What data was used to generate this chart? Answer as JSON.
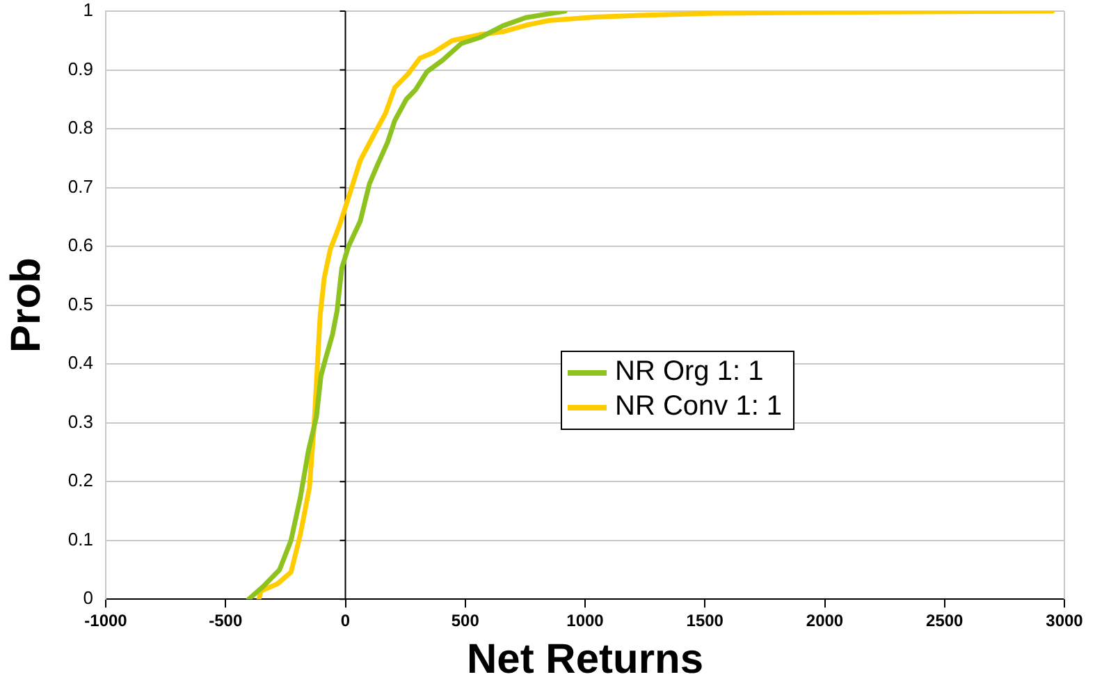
{
  "chart_data": {
    "type": "line",
    "xlabel": "Net Returns",
    "ylabel": "Prob",
    "xlim": [
      -1000,
      3000
    ],
    "xticks": [
      -1000,
      -500,
      0,
      500,
      1000,
      1500,
      2000,
      2500,
      3000
    ],
    "ylim": [
      0,
      1
    ],
    "yticks": [
      0,
      0.1,
      0.2,
      0.3,
      0.4,
      0.5,
      0.6,
      0.7,
      0.8,
      0.9,
      1
    ],
    "grid": "y",
    "legend": "right",
    "marker": "none",
    "line_style": "solid",
    "series": [
      {
        "name": "NR Org 1: 1",
        "color": "#8dc21f",
        "x": [
          -403,
          -342,
          -275,
          -227,
          -188,
          -154,
          -121,
          -102,
          -82,
          -54,
          -35,
          -15,
          13,
          62,
          100,
          129,
          177,
          206,
          254,
          292,
          340,
          407,
          484,
          561,
          657,
          753,
          916
        ],
        "values": [
          0,
          0.022,
          0.05,
          0.1,
          0.173,
          0.253,
          0.31,
          0.38,
          0.41,
          0.45,
          0.49,
          0.563,
          0.6,
          0.643,
          0.706,
          0.734,
          0.778,
          0.814,
          0.85,
          0.866,
          0.897,
          0.917,
          0.945,
          0.955,
          0.975,
          0.989,
          1
        ]
      },
      {
        "name": "NR Conv 1: 1",
        "color": "#ffcc00",
        "x": [
          -361,
          -352,
          -284,
          -227,
          -188,
          -150,
          -131,
          -115,
          -105,
          -88,
          -63,
          -25,
          13,
          62,
          119,
          167,
          206,
          263,
          311,
          369,
          446,
          561,
          657,
          753,
          849,
          1041,
          1233,
          1500,
          2000,
          2950
        ],
        "values": [
          0,
          0.014,
          0.026,
          0.046,
          0.11,
          0.19,
          0.293,
          0.412,
          0.484,
          0.547,
          0.595,
          0.635,
          0.683,
          0.746,
          0.79,
          0.826,
          0.87,
          0.894,
          0.92,
          0.93,
          0.95,
          0.96,
          0.965,
          0.976,
          0.984,
          0.99,
          0.993,
          0.996,
          0.998,
          1
        ]
      }
    ]
  }
}
